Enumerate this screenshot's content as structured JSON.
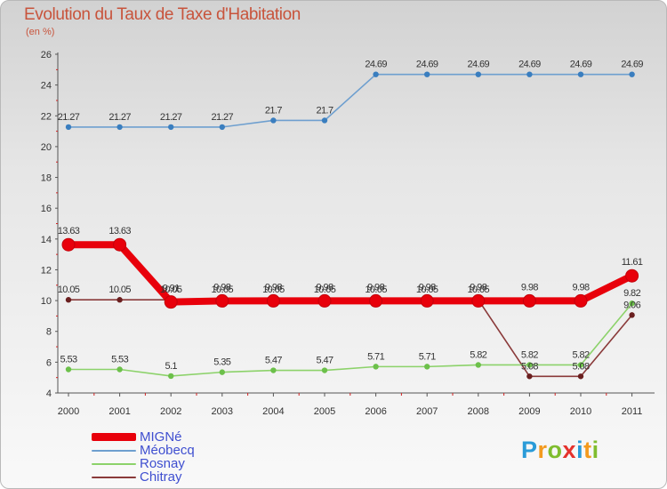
{
  "header": {
    "title": "Evolution du Taux de Taxe d'Habitation",
    "subtitle": "(en %)"
  },
  "logo": {
    "letters": [
      "P",
      "r",
      "o",
      "x",
      "i",
      "t",
      "i"
    ],
    "colors": [
      "#2a9bd8",
      "#f39a1e",
      "#7fbd2e",
      "#e5322c",
      "#2a9bd8",
      "#f39a1e",
      "#7fbd2e"
    ]
  },
  "chart_data": {
    "type": "line",
    "title": "Evolution du Taux de Taxe d'Habitation",
    "ylabel": "(en %)",
    "xlabel": "",
    "categories": [
      "2000",
      "2001",
      "2002",
      "2003",
      "2004",
      "2005",
      "2006",
      "2007",
      "2008",
      "2009",
      "2010",
      "2011"
    ],
    "ylim": [
      4,
      26
    ],
    "yticks": [
      4,
      6,
      8,
      10,
      12,
      14,
      16,
      18,
      20,
      22,
      24,
      26
    ],
    "grid": false,
    "legend_position": "bottom-left",
    "series": [
      {
        "name": "Méobecq",
        "color": "#6e9fcf",
        "marker": "#3a7ebf",
        "values": [
          21.27,
          21.27,
          21.27,
          21.27,
          21.7,
          21.7,
          24.69,
          24.69,
          24.69,
          24.69,
          24.69,
          24.69
        ],
        "labels": [
          "21.27",
          "21.27",
          "21.27",
          "21.27",
          "21.7",
          "21.7",
          "24.69",
          "24.69",
          "24.69",
          "24.69",
          "24.69",
          "24.69"
        ]
      },
      {
        "name": "Chitray",
        "color": "#8a3a3a",
        "marker": "#6a1f1f",
        "values": [
          10.05,
          10.05,
          10.05,
          10.05,
          10.05,
          10.05,
          10.05,
          10.05,
          10.05,
          5.08,
          5.08,
          9.06
        ],
        "labels": [
          "10.05",
          "10.05",
          "10.05",
          "10.05",
          "10.05",
          "10.05",
          "10.05",
          "10.05",
          "10.05",
          "5.08",
          "5.08",
          "9.06"
        ]
      },
      {
        "name": "Rosnay",
        "color": "#8cd26a",
        "marker": "#6cc04a",
        "values": [
          5.53,
          5.53,
          5.1,
          5.35,
          5.47,
          5.47,
          5.71,
          5.71,
          5.82,
          5.82,
          5.82,
          9.82
        ],
        "labels": [
          "5.53",
          "5.53",
          "5.1",
          "5.35",
          "5.47",
          "5.47",
          "5.71",
          "5.71",
          "5.82",
          "5.82",
          "5.82",
          "9.82"
        ]
      },
      {
        "name": "MIGNé",
        "color": "#e8000b",
        "marker": "#e8000b",
        "values": [
          13.63,
          13.63,
          9.91,
          9.98,
          9.98,
          9.98,
          9.98,
          9.98,
          9.98,
          9.98,
          9.98,
          11.61
        ],
        "labels": [
          "13.63",
          "13.63",
          "9.91",
          "9.98",
          "9.98",
          "9.98",
          "9.98",
          "9.98",
          "9.98",
          "9.98",
          "9.98",
          "11.61"
        ]
      }
    ],
    "legend": [
      {
        "name": "MIGNé",
        "color": "#e8000b"
      },
      {
        "name": "Méobecq",
        "color": "#6e9fcf"
      },
      {
        "name": "Rosnay",
        "color": "#8cd26a"
      },
      {
        "name": "Chitray",
        "color": "#8a3a3a"
      }
    ]
  }
}
